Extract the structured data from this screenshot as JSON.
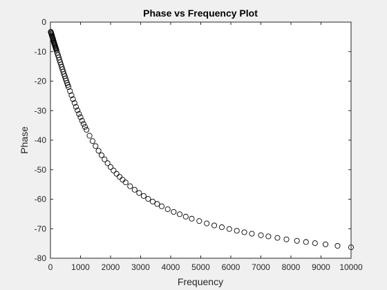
{
  "chart_data": {
    "type": "scatter",
    "title": "Phase vs Frequency Plot",
    "xlabel": "Frequency",
    "ylabel": "Phase",
    "xlim": [
      0,
      10000
    ],
    "ylim": [
      -80,
      0
    ],
    "xticks": [
      0,
      1000,
      2000,
      3000,
      4000,
      5000,
      6000,
      7000,
      8000,
      9000,
      10000
    ],
    "yticks": [
      0,
      -10,
      -20,
      -30,
      -40,
      -50,
      -60,
      -70,
      -80
    ],
    "grid": false,
    "marker": "open-circle",
    "series": [
      {
        "x": [
          10,
          20,
          30,
          40,
          50,
          60,
          70,
          80,
          90,
          100,
          110,
          120,
          130,
          140,
          150,
          160,
          170,
          180,
          190,
          200,
          225,
          250,
          275,
          300,
          325,
          350,
          375,
          400,
          425,
          450,
          475,
          500,
          525,
          550,
          575,
          600,
          650,
          700,
          750,
          800,
          850,
          900,
          950,
          1000,
          1050,
          1100,
          1150,
          1200,
          1300,
          1400,
          1500,
          1600,
          1700,
          1800,
          1900,
          2000,
          2100,
          2200,
          2300,
          2400,
          2500,
          2650,
          2800,
          2950,
          3100,
          3250,
          3400,
          3550,
          3700,
          3900,
          4100,
          4300,
          4500,
          4700,
          4950,
          5200,
          5450,
          5700,
          5950,
          6200,
          6450,
          6700,
          7000,
          7250,
          7550,
          7850,
          8200,
          8500,
          8800,
          9150,
          9550,
          10000
        ],
        "y": [
          -3.3,
          -3.6,
          -3.9,
          -4.3,
          -4.6,
          -5.0,
          -5.3,
          -5.6,
          -6.0,
          -6.3,
          -6.6,
          -7.0,
          -7.3,
          -7.6,
          -7.9,
          -8.3,
          -8.6,
          -8.9,
          -9.2,
          -9.6,
          -10.4,
          -11.2,
          -12.0,
          -12.8,
          -13.6,
          -14.4,
          -15.2,
          -16.0,
          -16.8,
          -17.6,
          -18.3,
          -19.1,
          -19.8,
          -20.6,
          -21.3,
          -22.0,
          -23.4,
          -24.8,
          -26.1,
          -27.4,
          -28.7,
          -29.9,
          -31.1,
          -32.2,
          -33.4,
          -34.5,
          -35.5,
          -36.5,
          -38.5,
          -40.3,
          -42.0,
          -43.6,
          -45.1,
          -46.5,
          -47.8,
          -49.1,
          -50.3,
          -51.4,
          -52.4,
          -53.4,
          -54.3,
          -55.6,
          -56.8,
          -57.9,
          -58.9,
          -59.9,
          -60.8,
          -61.6,
          -62.4,
          -63.4,
          -64.3,
          -65.1,
          -65.9,
          -66.6,
          -67.4,
          -68.2,
          -68.9,
          -69.5,
          -70.1,
          -70.7,
          -71.2,
          -71.7,
          -72.2,
          -72.6,
          -73.1,
          -73.6,
          -74.1,
          -74.5,
          -74.9,
          -75.3,
          -75.8,
          -76.3
        ]
      }
    ]
  }
}
